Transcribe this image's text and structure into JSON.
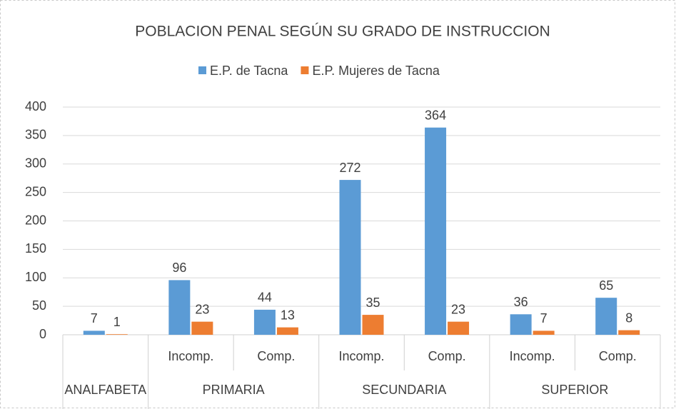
{
  "chart_data": {
    "type": "bar",
    "title": "POBLACION PENAL SEGÚN SU GRADO DE INSTRUCCION",
    "groups": [
      {
        "label": "ANALFABETA",
        "categories": [
          null
        ]
      },
      {
        "label": "PRIMARIA",
        "categories": [
          "Incomp.",
          "Comp."
        ]
      },
      {
        "label": "SECUNDARIA",
        "categories": [
          "Incomp.",
          "Comp."
        ]
      },
      {
        "label": "SUPERIOR",
        "categories": [
          "Incomp.",
          "Comp."
        ]
      }
    ],
    "series": [
      {
        "name": "E.P. de Tacna",
        "color": "#5b9bd5",
        "values": [
          7,
          96,
          44,
          272,
          364,
          36,
          65
        ]
      },
      {
        "name": "E.P. Mujeres de Tacna",
        "color": "#ed7d31",
        "values": [
          1,
          23,
          13,
          35,
          23,
          7,
          8
        ]
      }
    ],
    "ylim": [
      0,
      400
    ],
    "yticks": [
      0,
      50,
      100,
      150,
      200,
      250,
      300,
      350,
      400
    ],
    "grid": true,
    "legend": "top"
  }
}
